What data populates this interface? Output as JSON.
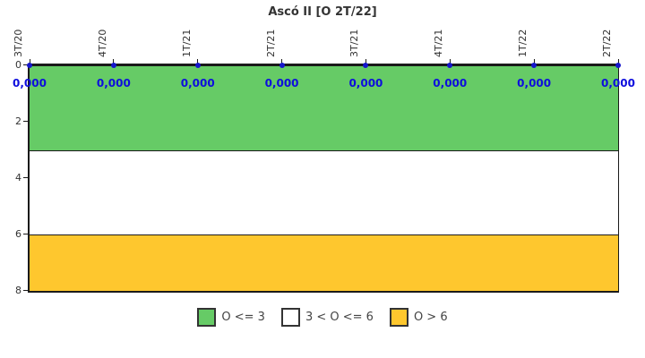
{
  "chart_data": {
    "type": "line",
    "title": "Ascó II [O 2T/22]",
    "categories": [
      "3T/20",
      "4T/20",
      "1T/21",
      "2T/21",
      "3T/21",
      "4T/21",
      "1T/22",
      "2T/22"
    ],
    "series": [
      {
        "name": "O",
        "values": [
          0,
          0,
          0,
          0,
          0,
          0,
          0,
          0
        ],
        "point_labels": [
          "0,000",
          "0,000",
          "0,000",
          "0,000",
          "0,000",
          "0,000",
          "0,000",
          "0,000"
        ]
      }
    ],
    "ylim": [
      0,
      8
    ],
    "y_axis_inverted": true,
    "y_ticks": [
      0,
      2,
      4,
      6,
      8
    ],
    "grid": false,
    "legend_position": "bottom",
    "bands": [
      {
        "label": "O <= 3",
        "from": 0,
        "to": 3,
        "color": "#66cb66"
      },
      {
        "label": "3 < O <= 6",
        "from": 3,
        "to": 6,
        "color": "#ffffff"
      },
      {
        "label": "O > 6",
        "from": 6,
        "to": 8,
        "color": "#fec72e"
      }
    ],
    "colors": {
      "axis": "#1a1a1a",
      "tick_label": "#333333",
      "title": "#333333",
      "marker": "#1515cc",
      "point_label": "#0d0ddd",
      "legend_text": "#444444"
    }
  }
}
